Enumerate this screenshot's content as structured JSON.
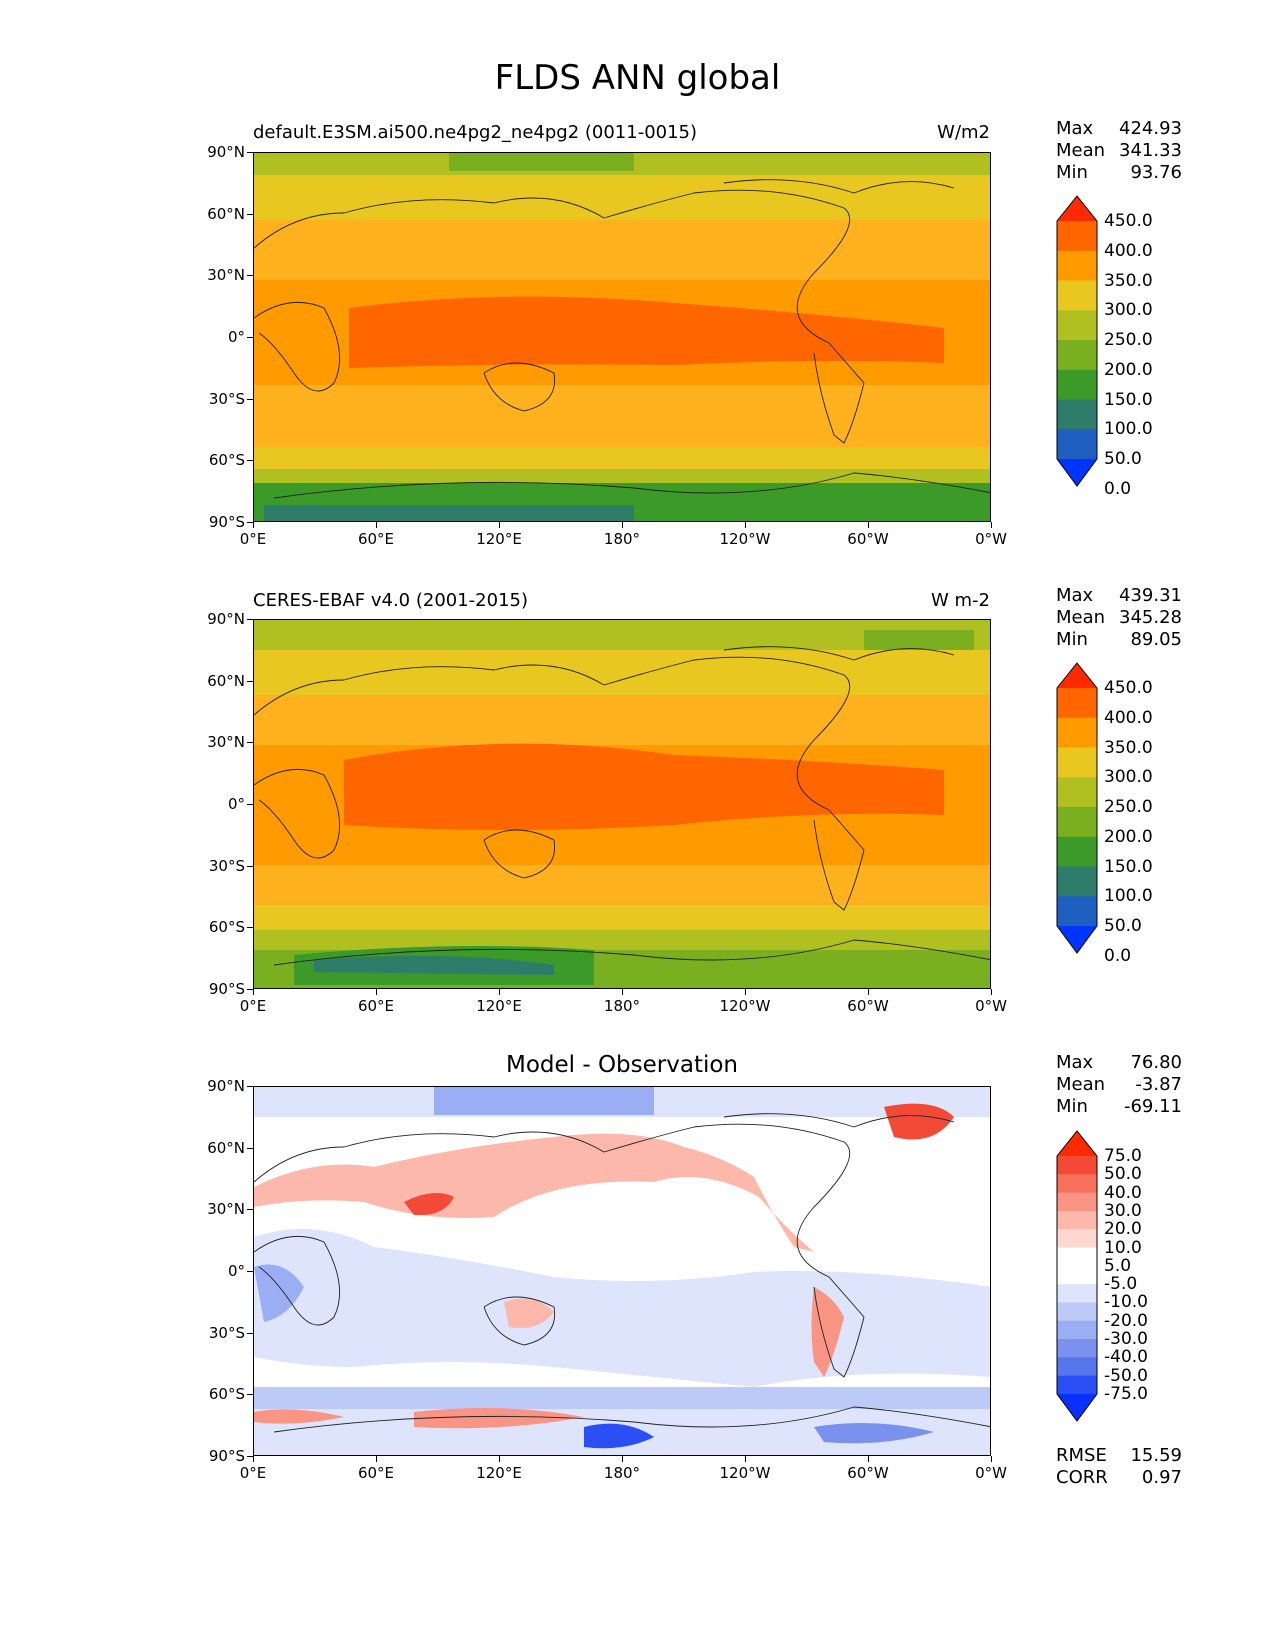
{
  "figure": {
    "title": "FLDS ANN global"
  },
  "axes": {
    "lat_ticks": [
      "90°N",
      "60°N",
      "30°N",
      "0°",
      "30°S",
      "60°S",
      "90°S"
    ],
    "lon_ticks": [
      "0°E",
      "60°E",
      "120°E",
      "180°",
      "120°W",
      "60°W",
      "0°W"
    ]
  },
  "panels": [
    {
      "title": "default.E3SM.ai500.ne4pg2_ne4pg2 (0011-0015)",
      "units": "W/m2",
      "stats": {
        "max_label": "Max",
        "max": "424.93",
        "mean_label": "Mean",
        "mean": "341.33",
        "min_label": "Min",
        "min": "93.76"
      },
      "colorbar": {
        "labels": [
          "450.0",
          "400.0",
          "350.0",
          "300.0",
          "250.0",
          "200.0",
          "150.0",
          "100.0",
          "50.0",
          "0.0"
        ],
        "colors": [
          "#ff2a00",
          "#ff6600",
          "#ff9a00",
          "#e8c820",
          "#b0c020",
          "#7ab020",
          "#3c9a28",
          "#2e7d6a",
          "#1f5fbf",
          "#0035ff"
        ]
      }
    },
    {
      "title": "CERES-EBAF v4.0 (2001-2015)",
      "units": "W m-2",
      "stats": {
        "max_label": "Max",
        "max": "439.31",
        "mean_label": "Mean",
        "mean": "345.28",
        "min_label": "Min",
        "min": "89.05"
      },
      "colorbar": {
        "labels": [
          "450.0",
          "400.0",
          "350.0",
          "300.0",
          "250.0",
          "200.0",
          "150.0",
          "100.0",
          "50.0",
          "0.0"
        ],
        "colors": [
          "#ff2a00",
          "#ff6600",
          "#ff9a00",
          "#e8c820",
          "#b0c020",
          "#7ab020",
          "#3c9a28",
          "#2e7d6a",
          "#1f5fbf",
          "#0035ff"
        ]
      }
    },
    {
      "title": "Model - Observation",
      "units": "",
      "stats": {
        "max_label": "Max",
        "max": "76.80",
        "mean_label": "Mean",
        "mean": "-3.87",
        "min_label": "Min",
        "min": "-69.11"
      },
      "extra_stats": {
        "rmse_label": "RMSE",
        "rmse": "15.59",
        "corr_label": "CORR",
        "corr": "0.97"
      },
      "colorbar": {
        "labels": [
          "75.0",
          "50.0",
          "40.0",
          "30.0",
          "20.0",
          "10.0",
          "5.0",
          "-5.0",
          "-10.0",
          "-20.0",
          "-30.0",
          "-40.0",
          "-50.0",
          "-75.0"
        ],
        "colors": [
          "#ff2a00",
          "#f34a38",
          "#f7705c",
          "#fa9484",
          "#fcb8aa",
          "#fdd8d0",
          "#ffffff",
          "#ffffff",
          "#dde4fb",
          "#bccaf7",
          "#9aaef3",
          "#7a92ee",
          "#5676ee",
          "#2a50f5",
          "#0a30ff"
        ]
      }
    }
  ],
  "chart_data": [
    {
      "type": "heatmap",
      "title": "default.E3SM.ai500.ne4pg2_ne4pg2 (0011-0015)",
      "units": "W/m2",
      "x": [
        "0°E",
        "60°E",
        "120°E",
        "180°",
        "120°W",
        "60°W",
        "0°W"
      ],
      "y": [
        "90°N",
        "60°N",
        "30°N",
        "0°",
        "30°S",
        "60°S",
        "90°S"
      ],
      "zonal_profile": {
        "lat": [
          85,
          75,
          65,
          55,
          45,
          35,
          25,
          15,
          5,
          -5,
          -15,
          -25,
          -35,
          -45,
          -55,
          -65,
          -75,
          -85
        ],
        "value": [
          200,
          230,
          260,
          290,
          310,
          330,
          360,
          390,
          405,
          400,
          380,
          350,
          320,
          300,
          270,
          230,
          170,
          130
        ]
      },
      "levels": [
        0,
        50,
        100,
        150,
        200,
        250,
        300,
        350,
        400,
        450
      ]
    },
    {
      "type": "heatmap",
      "title": "CERES-EBAF v4.0 (2001-2015)",
      "units": "W m-2",
      "x": [
        "0°E",
        "60°E",
        "120°E",
        "180°",
        "120°W",
        "60°W",
        "0°W"
      ],
      "y": [
        "90°N",
        "60°N",
        "30°N",
        "0°",
        "30°S",
        "60°S",
        "90°S"
      ],
      "zonal_profile": {
        "lat": [
          85,
          75,
          65,
          55,
          45,
          35,
          25,
          15,
          5,
          -5,
          -15,
          -25,
          -35,
          -45,
          -55,
          -65,
          -75,
          -85
        ],
        "value": [
          210,
          235,
          260,
          290,
          310,
          330,
          360,
          395,
          410,
          405,
          385,
          355,
          320,
          300,
          265,
          220,
          160,
          140
        ]
      },
      "levels": [
        0,
        50,
        100,
        150,
        200,
        250,
        300,
        350,
        400,
        450
      ]
    },
    {
      "type": "heatmap",
      "title": "Model - Observation",
      "x": [
        "0°E",
        "60°E",
        "120°E",
        "180°",
        "120°W",
        "60°W",
        "0°W"
      ],
      "y": [
        "90°N",
        "60°N",
        "30°N",
        "0°",
        "30°S",
        "60°S",
        "90°S"
      ],
      "levels": [
        -75,
        -50,
        -40,
        -30,
        -20,
        -10,
        -5,
        5,
        10,
        20,
        30,
        40,
        50,
        75
      ]
    }
  ]
}
